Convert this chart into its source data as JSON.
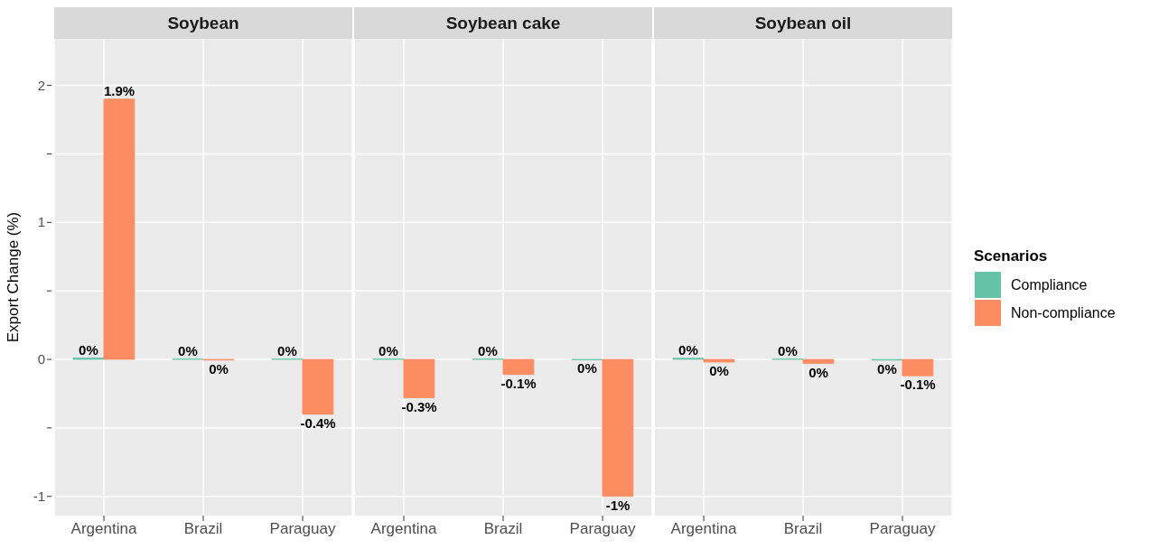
{
  "chart_data": [
    {
      "type": "bar",
      "title": "Soybean",
      "ylabel": "Export Change (%)",
      "categories": [
        "Argentina",
        "Brazil",
        "Paraguay"
      ],
      "series": [
        {
          "color": "#66c2a5",
          "values": [
            0.01,
            0.002,
            0.002
          ],
          "value_labels": [
            "0%",
            "0%",
            "0%"
          ]
        },
        {
          "color": "#fc8d62",
          "values": [
            1.9,
            -0.005,
            -0.4
          ],
          "value_labels": [
            "1.9%",
            "0%",
            "-0.4%"
          ]
        }
      ],
      "ylim": [
        -1.14,
        2.34
      ],
      "yticks": [
        {
          "value": -1,
          "label": "-1"
        },
        {
          "value": -0.5,
          "label": null
        },
        0,
        {
          "value": 0.5,
          "label": null
        },
        1,
        {
          "value": 1.5,
          "label": null
        },
        2
      ],
      "grid": true
    },
    {
      "type": "bar",
      "title": "Soybean cake",
      "categories": [
        "Argentina",
        "Brazil",
        "Paraguay"
      ],
      "series": [
        {
          "color": "#66c2a5",
          "values": [
            0.002,
            0.002,
            -0.003
          ],
          "value_labels": [
            "0%",
            "0%",
            "0%"
          ]
        },
        {
          "color": "#fc8d62",
          "values": [
            -0.28,
            -0.11,
            -1.0
          ],
          "value_labels": [
            "-0.3%",
            "-0.1%",
            "-1%"
          ]
        }
      ],
      "ylim": [
        -1.14,
        2.34
      ],
      "yticks": [
        -1,
        -0.5,
        0,
        0.5,
        1,
        1.5,
        2
      ],
      "tick_labels": "x",
      "grid": true
    },
    {
      "type": "bar",
      "title": "Soybean oil",
      "legend_title": "Scenarios",
      "categories": [
        "Argentina",
        "Brazil",
        "Paraguay"
      ],
      "series": [
        {
          "name": "Compliance",
          "color": "#66c2a5",
          "values": [
            0.008,
            0.002,
            -0.005
          ],
          "value_labels": [
            "0%",
            "0%",
            "0%"
          ]
        },
        {
          "name": "Non-compliance",
          "color": "#fc8d62",
          "values": [
            -0.02,
            -0.03,
            -0.12
          ],
          "value_labels": [
            "0%",
            "0%",
            "-0.1%"
          ]
        }
      ],
      "ylim": [
        -1.14,
        2.34
      ],
      "yticks": [
        -1,
        -0.5,
        0,
        0.5,
        1,
        1.5,
        2
      ],
      "tick_labels": "x",
      "grid": true,
      "legend": "right"
    }
  ]
}
